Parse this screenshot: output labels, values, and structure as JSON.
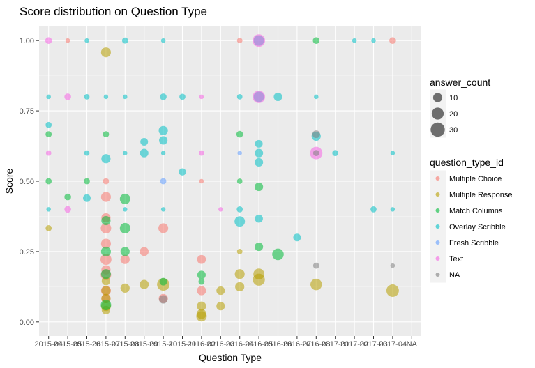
{
  "chart_data": {
    "type": "scatter",
    "title": "Score distribution on Question Type",
    "xlabel": "Question Type",
    "ylabel": "Score",
    "ylim": [
      -0.05,
      1.05
    ],
    "yticks": [
      0.0,
      0.25,
      0.5,
      0.75,
      1.0
    ],
    "ytick_labels": [
      "0.00",
      "0.25",
      "0.50",
      "0.75",
      "1.00"
    ],
    "x_categories": [
      "2015-04",
      "2015-05",
      "2015-06",
      "2015-07",
      "2015-08",
      "2015-09",
      "2015-10",
      "2015-11",
      "2016-02",
      "2016-03",
      "2016-04",
      "2016-05",
      "2016-06",
      "2016-07",
      "2016-08",
      "2017-01",
      "2017-02",
      "2017-03",
      "2017-04",
      "NA"
    ],
    "x_tick_labels": [
      "2015-04",
      "2015-05",
      "2015-06",
      "2015-07",
      "2015-08",
      "2015-09",
      "2015-10",
      "2015-11",
      "2016-02",
      "2016-03",
      "2016-04",
      "2016-05",
      "2016-06",
      "2016-07",
      "2016-08",
      "2017-01",
      "2017-02",
      "2017-03",
      "2017-04",
      "NA"
    ],
    "grid": true,
    "legend_position": "right",
    "size_legend": {
      "title": "answer_count",
      "values": [
        10,
        20,
        30
      ],
      "labels": [
        "10",
        "20",
        "30"
      ]
    },
    "color_legend": {
      "title": "question_type_id",
      "entries": [
        {
          "name": "Multiple Choice",
          "color": "#F8766D"
        },
        {
          "name": "Multiple Response",
          "color": "#B79F00"
        },
        {
          "name": "Match Columns",
          "color": "#00BA38"
        },
        {
          "name": "Overlay Scribble",
          "color": "#00BFC4"
        },
        {
          "name": "Fresh Scribble",
          "color": "#619CFF"
        },
        {
          "name": "Text",
          "color": "#F564E3"
        },
        {
          "name": "NA",
          "color": "#7F7F7F"
        }
      ]
    },
    "series": [
      {
        "name": "Multiple Choice",
        "color": "#F8766D",
        "points": [
          {
            "x": "2015-05",
            "y": 1.0,
            "size": 1
          },
          {
            "x": "2015-07",
            "y": 0.5,
            "size": 3
          },
          {
            "x": "2015-07",
            "y": 0.444,
            "size": 12
          },
          {
            "x": "2015-07",
            "y": 0.37,
            "size": 10
          },
          {
            "x": "2015-07",
            "y": 0.333,
            "size": 14
          },
          {
            "x": "2015-07",
            "y": 0.278,
            "size": 12
          },
          {
            "x": "2015-07",
            "y": 0.222,
            "size": 16
          },
          {
            "x": "2015-07",
            "y": 0.185,
            "size": 10
          },
          {
            "x": "2015-07",
            "y": 0.167,
            "size": 14
          },
          {
            "x": "2015-07",
            "y": 0.111,
            "size": 12
          },
          {
            "x": "2015-07",
            "y": 0.083,
            "size": 10
          },
          {
            "x": "2015-08",
            "y": 0.222,
            "size": 10
          },
          {
            "x": "2015-09",
            "y": 0.25,
            "size": 9
          },
          {
            "x": "2015-10",
            "y": 0.333,
            "size": 12
          },
          {
            "x": "2015-10",
            "y": 0.083,
            "size": 10
          },
          {
            "x": "2016-02",
            "y": 0.5,
            "size": 1
          },
          {
            "x": "2016-02",
            "y": 0.222,
            "size": 9
          },
          {
            "x": "2016-02",
            "y": 0.111,
            "size": 10
          },
          {
            "x": "2016-04",
            "y": 1.0,
            "size": 2
          },
          {
            "x": "2017-04",
            "y": 1.0,
            "size": 4
          }
        ]
      },
      {
        "name": "Multiple Response",
        "color": "#B79F00",
        "points": [
          {
            "x": "2015-04",
            "y": 0.333,
            "size": 3
          },
          {
            "x": "2015-07",
            "y": 0.958,
            "size": 12
          },
          {
            "x": "2015-07",
            "y": 0.145,
            "size": 8
          },
          {
            "x": "2015-07",
            "y": 0.111,
            "size": 10
          },
          {
            "x": "2015-07",
            "y": 0.083,
            "size": 10
          },
          {
            "x": "2015-07",
            "y": 0.056,
            "size": 12
          },
          {
            "x": "2015-07",
            "y": 0.042,
            "size": 8
          },
          {
            "x": "2015-08",
            "y": 0.12,
            "size": 10
          },
          {
            "x": "2015-09",
            "y": 0.133,
            "size": 10
          },
          {
            "x": "2015-10",
            "y": 0.133,
            "size": 22
          },
          {
            "x": "2016-02",
            "y": 0.056,
            "size": 10
          },
          {
            "x": "2016-02",
            "y": 0.028,
            "size": 12
          },
          {
            "x": "2016-02",
            "y": 0.02,
            "size": 14
          },
          {
            "x": "2016-03",
            "y": 0.111,
            "size": 8
          },
          {
            "x": "2016-03",
            "y": 0.056,
            "size": 8
          },
          {
            "x": "2016-04",
            "y": 0.25,
            "size": 2
          },
          {
            "x": "2016-04",
            "y": 0.17,
            "size": 12
          },
          {
            "x": "2016-04",
            "y": 0.125,
            "size": 10
          },
          {
            "x": "2016-05",
            "y": 0.17,
            "size": 16
          },
          {
            "x": "2016-05",
            "y": 0.15,
            "size": 20
          },
          {
            "x": "2016-08",
            "y": 0.133,
            "size": 18
          },
          {
            "x": "2017-04",
            "y": 0.111,
            "size": 22
          }
        ]
      },
      {
        "name": "Match Columns",
        "color": "#00BA38",
        "points": [
          {
            "x": "2015-04",
            "y": 0.667,
            "size": 3
          },
          {
            "x": "2015-04",
            "y": 0.5,
            "size": 3
          },
          {
            "x": "2015-05",
            "y": 0.444,
            "size": 4
          },
          {
            "x": "2015-06",
            "y": 0.5,
            "size": 3
          },
          {
            "x": "2015-07",
            "y": 0.667,
            "size": 3
          },
          {
            "x": "2015-07",
            "y": 0.36,
            "size": 10
          },
          {
            "x": "2015-07",
            "y": 0.25,
            "size": 12
          },
          {
            "x": "2015-07",
            "y": 0.17,
            "size": 12
          },
          {
            "x": "2015-07",
            "y": 0.06,
            "size": 14
          },
          {
            "x": "2015-08",
            "y": 0.437,
            "size": 14
          },
          {
            "x": "2015-08",
            "y": 0.333,
            "size": 14
          },
          {
            "x": "2015-08",
            "y": 0.25,
            "size": 10
          },
          {
            "x": "2015-10",
            "y": 0.143,
            "size": 6
          },
          {
            "x": "2016-02",
            "y": 0.167,
            "size": 8
          },
          {
            "x": "2016-02",
            "y": 0.143,
            "size": 3
          },
          {
            "x": "2016-04",
            "y": 0.667,
            "size": 4
          },
          {
            "x": "2016-04",
            "y": 0.5,
            "size": 2
          },
          {
            "x": "2016-05",
            "y": 0.48,
            "size": 8
          },
          {
            "x": "2016-05",
            "y": 0.267,
            "size": 8
          },
          {
            "x": "2016-06",
            "y": 0.24,
            "size": 18
          },
          {
            "x": "2016-08",
            "y": 1.0,
            "size": 4
          }
        ]
      },
      {
        "name": "Overlay Scribble",
        "color": "#00BFC4",
        "points": [
          {
            "x": "2015-04",
            "y": 0.8,
            "size": 1
          },
          {
            "x": "2015-04",
            "y": 0.7,
            "size": 3
          },
          {
            "x": "2015-04",
            "y": 0.4,
            "size": 1
          },
          {
            "x": "2015-06",
            "y": 1.0,
            "size": 1
          },
          {
            "x": "2015-06",
            "y": 0.8,
            "size": 2
          },
          {
            "x": "2015-06",
            "y": 0.6,
            "size": 2
          },
          {
            "x": "2015-06",
            "y": 0.44,
            "size": 6
          },
          {
            "x": "2015-07",
            "y": 0.8,
            "size": 1
          },
          {
            "x": "2015-07",
            "y": 0.58,
            "size": 10
          },
          {
            "x": "2015-08",
            "y": 1.0,
            "size": 3
          },
          {
            "x": "2015-08",
            "y": 0.8,
            "size": 1
          },
          {
            "x": "2015-08",
            "y": 0.6,
            "size": 1
          },
          {
            "x": "2015-08",
            "y": 0.4,
            "size": 1
          },
          {
            "x": "2015-09",
            "y": 0.64,
            "size": 6
          },
          {
            "x": "2015-09",
            "y": 0.6,
            "size": 8
          },
          {
            "x": "2015-10",
            "y": 1.0,
            "size": 1
          },
          {
            "x": "2015-10",
            "y": 0.8,
            "size": 4
          },
          {
            "x": "2015-10",
            "y": 0.68,
            "size": 10
          },
          {
            "x": "2015-10",
            "y": 0.645,
            "size": 8
          },
          {
            "x": "2015-10",
            "y": 0.6,
            "size": 1
          },
          {
            "x": "2015-10",
            "y": 0.4,
            "size": 1
          },
          {
            "x": "2015-11",
            "y": 0.8,
            "size": 3
          },
          {
            "x": "2015-11",
            "y": 0.533,
            "size": 5
          },
          {
            "x": "2016-04",
            "y": 0.8,
            "size": 2
          },
          {
            "x": "2016-04",
            "y": 0.4,
            "size": 3
          },
          {
            "x": "2016-04",
            "y": 0.357,
            "size": 14
          },
          {
            "x": "2016-05",
            "y": 1.0,
            "size": 14
          },
          {
            "x": "2016-05",
            "y": 0.8,
            "size": 14
          },
          {
            "x": "2016-05",
            "y": 0.633,
            "size": 6
          },
          {
            "x": "2016-05",
            "y": 0.6,
            "size": 8
          },
          {
            "x": "2016-05",
            "y": 0.567,
            "size": 8
          },
          {
            "x": "2016-05",
            "y": 0.367,
            "size": 7
          },
          {
            "x": "2016-06",
            "y": 0.8,
            "size": 8
          },
          {
            "x": "2016-07",
            "y": 0.3,
            "size": 6
          },
          {
            "x": "2016-08",
            "y": 0.8,
            "size": 1
          },
          {
            "x": "2016-08",
            "y": 0.66,
            "size": 10
          },
          {
            "x": "2017-01",
            "y": 0.6,
            "size": 3
          },
          {
            "x": "2017-02",
            "y": 1.0,
            "size": 1
          },
          {
            "x": "2017-03",
            "y": 1.0,
            "size": 1
          },
          {
            "x": "2017-03",
            "y": 0.4,
            "size": 3
          },
          {
            "x": "2017-04",
            "y": 0.6,
            "size": 1
          },
          {
            "x": "2017-04",
            "y": 0.4,
            "size": 1
          }
        ]
      },
      {
        "name": "Fresh Scribble",
        "color": "#619CFF",
        "points": [
          {
            "x": "2015-10",
            "y": 0.5,
            "size": 3
          },
          {
            "x": "2016-04",
            "y": 0.6,
            "size": 1
          }
        ]
      },
      {
        "name": "Text",
        "color": "#F564E3",
        "points": [
          {
            "x": "2015-04",
            "y": 1.0,
            "size": 4
          },
          {
            "x": "2015-04",
            "y": 0.6,
            "size": 2
          },
          {
            "x": "2015-05",
            "y": 0.8,
            "size": 4
          },
          {
            "x": "2015-05",
            "y": 0.4,
            "size": 4
          },
          {
            "x": "2016-02",
            "y": 0.8,
            "size": 1
          },
          {
            "x": "2016-02",
            "y": 0.6,
            "size": 2
          },
          {
            "x": "2016-03",
            "y": 0.4,
            "size": 1
          },
          {
            "x": "2016-05",
            "y": 1.0,
            "size": 22
          },
          {
            "x": "2016-05",
            "y": 0.8,
            "size": 22
          },
          {
            "x": "2016-08",
            "y": 0.6,
            "size": 22
          }
        ]
      },
      {
        "name": "NA",
        "color": "#7F7F7F",
        "points": [
          {
            "x": "2015-10",
            "y": 0.08,
            "size": 8
          },
          {
            "x": "2016-08",
            "y": 0.667,
            "size": 6
          },
          {
            "x": "2016-08",
            "y": 0.6,
            "size": 3
          },
          {
            "x": "2016-08",
            "y": 0.2,
            "size": 3
          },
          {
            "x": "2017-04",
            "y": 0.2,
            "size": 1
          }
        ]
      }
    ]
  }
}
